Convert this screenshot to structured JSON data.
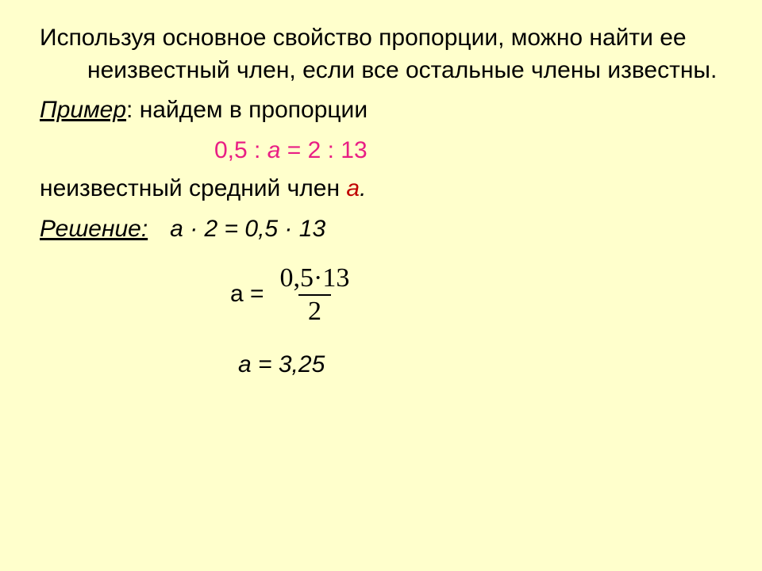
{
  "colors": {
    "background": "#ffffcc",
    "text": "#000000",
    "highlight": "#e91e84",
    "accent_red": "#c00000"
  },
  "typography": {
    "body_family": "Arial",
    "body_size_pt": 22,
    "math_family": "Times New Roman",
    "math_size_pt": 25
  },
  "p1": "Используя основное свойство пропорции, можно найти ее неизвестный член, если все остальные члены известны.",
  "example_label": "Пример",
  "example_rest": ": найдем в пропорции",
  "main_eq": {
    "lhs_num": "0,5",
    "lhs_var": "а",
    "rhs": "2 : 13",
    "full_pre": "0,5 : ",
    "full_mid": "а",
    "full_post": " = 2 : 13"
  },
  "unknown_line_pre": "неизвестный средний член ",
  "unknown_line_var": "а",
  "unknown_line_post": ".",
  "solution_label": "Решение:",
  "step1": "а · 2 = 0,5 · 13",
  "frac_line": {
    "lhs": "а =",
    "numerator": "0,5·13",
    "denominator": "2"
  },
  "answer": "а = 3,25"
}
